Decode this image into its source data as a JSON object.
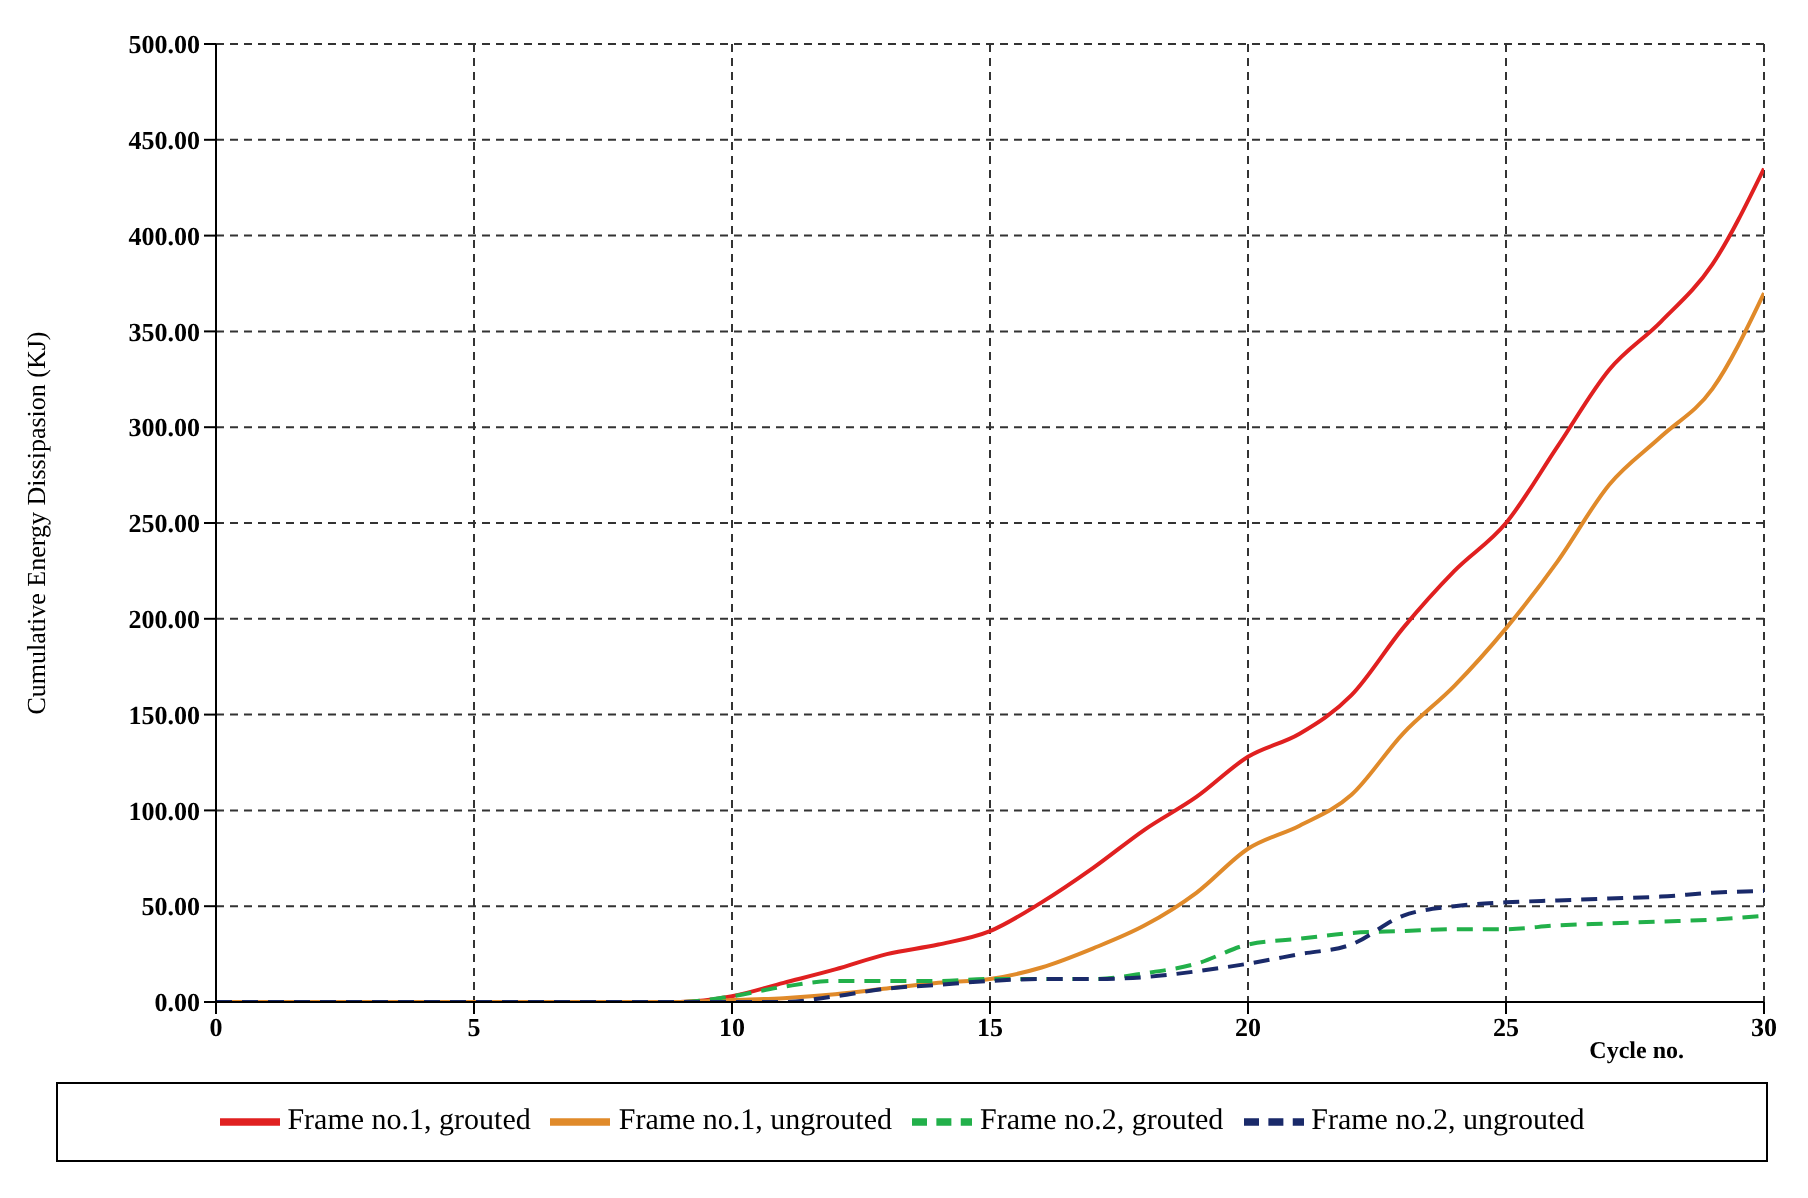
{
  "chart_data": {
    "type": "line",
    "xlabel": "Cycle no.",
    "ylabel": "Cumulative Energy Dissipasion (KJ)",
    "x": [
      0,
      5,
      9,
      10,
      11,
      12,
      13,
      14,
      15,
      16,
      17,
      18,
      19,
      20,
      21,
      22,
      23,
      24,
      25,
      26,
      27,
      28,
      29,
      30
    ],
    "series": [
      {
        "name": "Frame no.1, grouted",
        "color": "#e02020",
        "line_style": "solid",
        "values": [
          0,
          0,
          0,
          3,
          10,
          17,
          25,
          30,
          37,
          52,
          70,
          90,
          107,
          128,
          140,
          160,
          195,
          225,
          250,
          290,
          330,
          355,
          385,
          435
        ]
      },
      {
        "name": "Frame no.1, ungrouted",
        "color": "#e08a2a",
        "line_style": "solid",
        "values": [
          0,
          0,
          0,
          1,
          2,
          4,
          7,
          10,
          12,
          18,
          28,
          40,
          57,
          80,
          92,
          108,
          140,
          165,
          195,
          230,
          270,
          295,
          320,
          370
        ]
      },
      {
        "name": "Frame no.2, grouted",
        "color": "#22b04a",
        "line_style": "dashed",
        "values": [
          0,
          0,
          0,
          3,
          8,
          11,
          11,
          11,
          12,
          12,
          12,
          15,
          20,
          30,
          33,
          36,
          37,
          38,
          38,
          40,
          41,
          42,
          43,
          45
        ]
      },
      {
        "name": "Frame no.2, ungrouted",
        "color": "#1a2a6a",
        "line_style": "dashed",
        "values": [
          0,
          0,
          0,
          0,
          0,
          3,
          7,
          9,
          11,
          12,
          12,
          13,
          16,
          20,
          25,
          30,
          45,
          50,
          52,
          53,
          54,
          55,
          57,
          58
        ]
      }
    ],
    "xlim": [
      0,
      30
    ],
    "xticks": [
      0,
      5,
      10,
      15,
      20,
      25,
      30
    ],
    "ylim": [
      0,
      500
    ],
    "yticks": [
      {
        "value": 0,
        "label": "0.00"
      },
      {
        "value": 50,
        "label": "50.00"
      },
      {
        "value": 100,
        "label": "100.00"
      },
      {
        "value": 150,
        "label": "150.00"
      },
      {
        "value": 200,
        "label": "200.00"
      },
      {
        "value": 250,
        "label": "250.00"
      },
      {
        "value": 300,
        "label": "300.00"
      },
      {
        "value": 350,
        "label": "350.00"
      },
      {
        "value": 400,
        "label": "400.00"
      },
      {
        "value": 450,
        "label": "450.00"
      },
      {
        "value": 500,
        "label": "500.00"
      }
    ],
    "grid": true,
    "legend": "bottom",
    "marker": "none"
  }
}
